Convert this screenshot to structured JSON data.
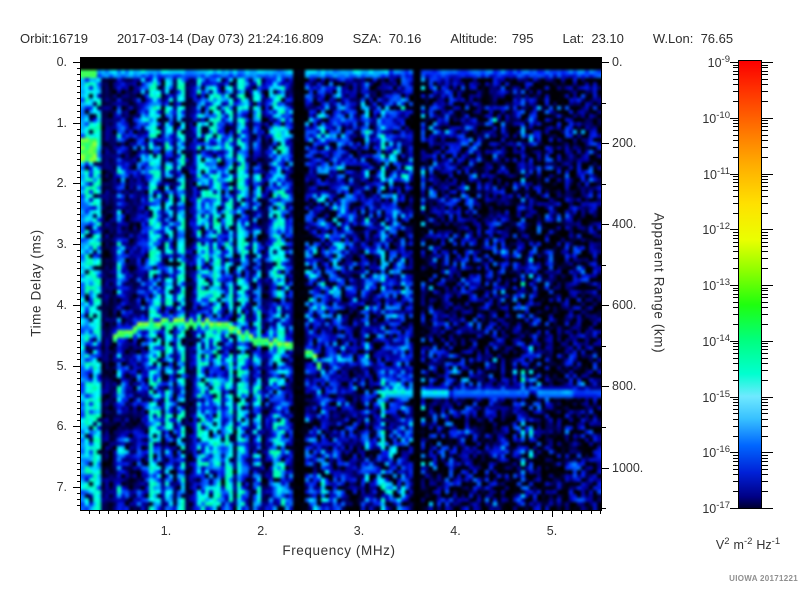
{
  "header": {
    "items": [
      "Orbit:16719",
      "2017-03-14 (Day 073) 21:24:16.809",
      "SZA:  70.16",
      "Altitude:    795",
      "Lat:  23.10",
      "W.Lon:  76.65"
    ]
  },
  "plot": {
    "x_axis": {
      "title": "Frequency (MHz)",
      "tick_labels": [
        "1.",
        "2.",
        "3.",
        "4.",
        "5."
      ],
      "tick_values": [
        1,
        2,
        3,
        4,
        5
      ],
      "minor_step": 0.1,
      "range": [
        0.12,
        5.51
      ]
    },
    "y_axis": {
      "title": "Time Delay (ms)",
      "tick_labels": [
        "0.",
        "1.",
        "2.",
        "3.",
        "4.",
        "5.",
        "6.",
        "7."
      ],
      "tick_values": [
        0,
        1,
        2,
        3,
        4,
        5,
        6,
        7
      ],
      "minor_step": 0.1,
      "range": [
        0,
        7.4
      ]
    },
    "y2_axis": {
      "title": "Apparent Range (km)",
      "tick_labels": [
        "0.",
        "200.",
        "400.",
        "600.",
        "800.",
        "1000."
      ],
      "tick_values": [
        0,
        200,
        400,
        600,
        800,
        1000
      ],
      "minor_step": 100,
      "range": [
        0,
        1105
      ]
    }
  },
  "colorbar": {
    "base": "10",
    "tick_exponents": [
      "-9",
      "-10",
      "-11",
      "-12",
      "-13",
      "-14",
      "-15",
      "-16",
      "-17"
    ],
    "unit_parts": [
      [
        "V",
        "2"
      ],
      [
        "m",
        "-2"
      ],
      [
        "Hz",
        "-1"
      ]
    ],
    "gradient": [
      [
        0,
        "#fb0000"
      ],
      [
        0.06,
        "#ff2e00"
      ],
      [
        0.14,
        "#ff6a00"
      ],
      [
        0.23,
        "#ffab00"
      ],
      [
        0.32,
        "#ffe100"
      ],
      [
        0.4,
        "#eaff00"
      ],
      [
        0.47,
        "#8cff00"
      ],
      [
        0.545,
        "#1fff0e"
      ],
      [
        0.625,
        "#00ff7f"
      ],
      [
        0.7,
        "#00ffd0"
      ],
      [
        0.75,
        "#6fe9ff"
      ],
      [
        0.8,
        "#38c1ff"
      ],
      [
        0.86,
        "#0066ff"
      ],
      [
        0.92,
        "#0021d8"
      ],
      [
        0.975,
        "#000085"
      ],
      [
        1,
        "#000030"
      ]
    ]
  },
  "credit": "UIOWA 20171221",
  "chart_data": {
    "type": "heatmap",
    "xlabel": "Frequency (MHz)",
    "ylabel": "Time Delay (ms)",
    "y2label": "Apparent Range (km)",
    "x_range_mhz": [
      0.12,
      5.51
    ],
    "y_range_ms": [
      0,
      7.4
    ],
    "y2_range_km": [
      0,
      1105
    ],
    "z_range": [
      "1e-17",
      "1e-9"
    ],
    "z_units": "V^2 m^-2 Hz^-1",
    "seed": 73,
    "palette": [
      [
        0,
        0,
        0,
        0
      ],
      [
        0.1,
        0,
        0,
        70
      ],
      [
        0.25,
        0,
        0,
        160
      ],
      [
        0.4,
        0,
        30,
        235
      ],
      [
        0.55,
        0,
        110,
        255
      ],
      [
        0.68,
        0,
        190,
        255
      ],
      [
        0.78,
        0,
        240,
        255
      ],
      [
        0.86,
        0,
        255,
        160
      ],
      [
        0.93,
        70,
        255,
        80
      ],
      [
        1,
        160,
        255,
        50
      ]
    ],
    "noise_regions": [
      {
        "f": [
          0.12,
          2.33
        ],
        "base": 0.5,
        "black_frac": 0.1,
        "striping": 0.85
      },
      {
        "f": [
          2.33,
          3.6
        ],
        "base": 0.36,
        "black_frac": 0.22,
        "striping": 0.35
      },
      {
        "f": [
          3.6,
          5.51
        ],
        "base": 0.3,
        "black_frac": 0.4,
        "striping": 0.25
      }
    ],
    "dark_bands": [
      {
        "f": [
          2.33,
          2.43
        ],
        "strength": 0.05
      },
      {
        "f": [
          3.56,
          3.64
        ],
        "strength": 0.05
      },
      {
        "f": [
          0.34,
          0.5
        ],
        "strength": 0.3
      },
      {
        "f": [
          1.22,
          1.32
        ],
        "strength": 0.45
      },
      {
        "f": [
          1.86,
          1.92
        ],
        "strength": 0.55
      }
    ],
    "features": {
      "top_black_ms": 0.115,
      "transmit_row_ms": [
        0.115,
        0.26
      ],
      "plasma_resonance": {
        "f": [
          0.12,
          0.29
        ],
        "t": [
          1.28,
          1.62
        ]
      },
      "left_edge_bright_f": 0.17,
      "ionosphere_trace": {
        "points_f_ms": [
          [
            0.47,
            4.5
          ],
          [
            0.6,
            4.43
          ],
          [
            0.76,
            4.33
          ],
          [
            0.85,
            4.29
          ],
          [
            1.1,
            4.27
          ],
          [
            1.42,
            4.28
          ],
          [
            1.6,
            4.31
          ],
          [
            1.8,
            4.48
          ],
          [
            2.0,
            4.56
          ],
          [
            2.14,
            4.62
          ],
          [
            2.33,
            4.67
          ],
          [
            2.43,
            4.7
          ],
          [
            2.52,
            4.78
          ],
          [
            2.58,
            4.93
          ],
          [
            2.62,
            5.12
          ]
        ],
        "gap_f": [
          2.33,
          2.43
        ]
      },
      "surface_echo": {
        "t_ms": 5.42,
        "segments": [
          {
            "f": [
              3.24,
              3.56
            ],
            "v": 0.8
          },
          {
            "f": [
              3.64,
              3.93
            ],
            "v": 0.8
          },
          {
            "f": [
              3.96,
              4.78
            ],
            "v": 0.58
          },
          {
            "f": [
              4.86,
              5.22
            ],
            "v": 0.66
          },
          {
            "f": [
              5.22,
              5.51
            ],
            "v": 0.46
          }
        ]
      }
    }
  }
}
